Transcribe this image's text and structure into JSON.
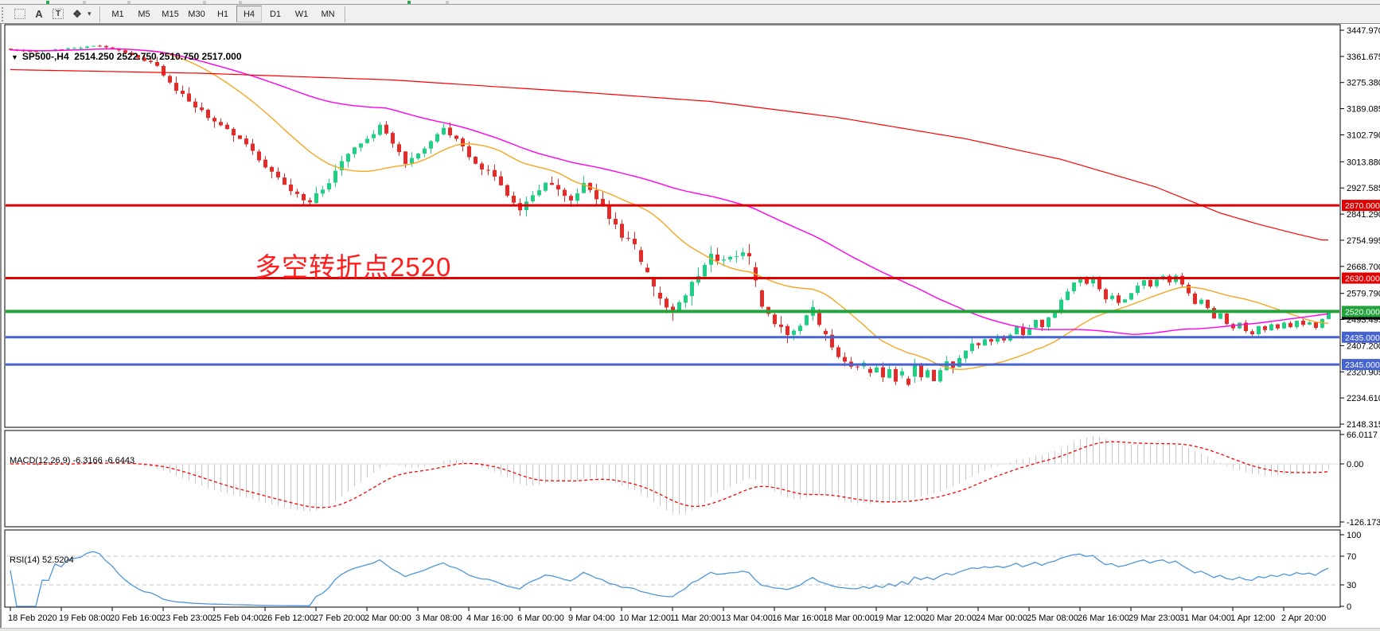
{
  "toolbar": {
    "tools": [
      {
        "id": "indicator-window-tool",
        "glyph": "F"
      },
      {
        "id": "text-label-tool",
        "glyph": "A"
      },
      {
        "id": "text-box-tool",
        "glyph": "T"
      },
      {
        "id": "shapes-tool",
        "glyph": "❖"
      },
      {
        "id": "shapes-dropdown",
        "glyph": "▾"
      }
    ],
    "timeframes": [
      "M1",
      "M5",
      "M15",
      "M30",
      "H1",
      "H4",
      "D1",
      "W1",
      "MN"
    ],
    "active_timeframe": "H4"
  },
  "chart": {
    "title_arrow": "▼",
    "symbol_period": "SP500-,H4",
    "ohlc": "2514.250 2522.750 2510.750 2517.000",
    "annotation": {
      "text": "多空转折点2520",
      "color": "#ff1e1e"
    }
  },
  "indicator_labels": {
    "macd": "MACD(12,26,9) -6.3166 -6.6443",
    "rsi": "RSI(14) 52.5204"
  },
  "axes": {
    "price_labels": [
      3447.97,
      3361.675,
      3275.38,
      3189.085,
      3102.79,
      3013.88,
      2927.585,
      2841.29,
      2754.995,
      2668.7,
      2579.79,
      2493.495,
      2407.2,
      2320.905,
      2234.61,
      2148.315
    ],
    "macd_labels": [
      {
        "v": 66.0117,
        "t": "66.0117"
      },
      {
        "v": 0,
        "t": "0.00"
      },
      {
        "v": -126.173,
        "t": "-126.173"
      }
    ],
    "rsi_labels": [
      {
        "v": 100,
        "t": "100"
      },
      {
        "v": 70,
        "t": "70"
      },
      {
        "v": 30,
        "t": "30"
      },
      {
        "v": 0,
        "t": "0"
      }
    ],
    "date_labels": [
      "18 Feb 2020",
      "19 Feb 08:00",
      "20 Feb 16:00",
      "23 Feb 23:00",
      "25 Feb 04:00",
      "26 Feb 12:00",
      "27 Feb 20:00",
      "2 Mar 00:00",
      "3 Mar 08:00",
      "4 Mar 16:00",
      "6 Mar 00:00",
      "9 Mar 04:00",
      "10 Mar 12:00",
      "11 Mar 20:00",
      "13 Mar 04:00",
      "16 Mar 16:00",
      "18 Mar 00:00",
      "19 Mar 12:00",
      "20 Mar 20:00",
      "24 Mar 00:00",
      "25 Mar 08:00",
      "26 Mar 16:00",
      "29 Mar 23:00",
      "31 Mar 04:00",
      "1 Apr 12:00",
      "2 Apr 20:00"
    ]
  },
  "hlines": [
    {
      "price": 2870,
      "label": "2870.000",
      "color": "#e00000",
      "width": 3
    },
    {
      "price": 2630,
      "label": "2630.000",
      "color": "#e00000",
      "width": 3
    },
    {
      "price": 2520,
      "label": "2520.000",
      "color": "#22a33c",
      "width": 4
    },
    {
      "price": 2435,
      "label": "2435.000",
      "color": "#4663d4",
      "width": 3
    },
    {
      "price": 2345,
      "label": "2345.000",
      "color": "#4663d4",
      "width": 3
    }
  ],
  "current_price": {
    "value": 2517.0,
    "label": "2517.000",
    "badge_color": "#000000"
  },
  "colors": {
    "up_candle": "#1fcf84",
    "down_candle": "#e32b28",
    "ma_fast": "#f5a623",
    "ma_mid": "#ff00ee",
    "ma_slow": "#ff0000",
    "macd_hist": "#c8c8c8",
    "macd_signal": "#ff0000",
    "rsi_line": "#4e96dc",
    "level_dash": "#c4c4c4",
    "axis_text": "#000000"
  },
  "chart_data": {
    "type": "candlestick",
    "symbol": "SP500-",
    "timeframe": "H4",
    "bars": 208,
    "label_every_n_bars": 8,
    "price_axis_top": 3447.97,
    "price_axis_bottom": 2148.315,
    "close_path": [
      [
        0,
        3383
      ],
      [
        4,
        3378
      ],
      [
        8,
        3386
      ],
      [
        12,
        3393
      ],
      [
        14,
        3397
      ],
      [
        16,
        3387
      ],
      [
        18,
        3375
      ],
      [
        20,
        3357
      ],
      [
        22,
        3338
      ],
      [
        23,
        3330
      ],
      [
        24,
        3305
      ],
      [
        26,
        3252
      ],
      [
        28,
        3214
      ],
      [
        30,
        3180
      ],
      [
        32,
        3152
      ],
      [
        34,
        3126
      ],
      [
        36,
        3088
      ],
      [
        38,
        3044
      ],
      [
        40,
        2995
      ],
      [
        42,
        2954
      ],
      [
        44,
        2918
      ],
      [
        46,
        2888
      ],
      [
        47,
        2872
      ],
      [
        48,
        2908
      ],
      [
        50,
        2952
      ],
      [
        52,
        3012
      ],
      [
        54,
        3066
      ],
      [
        56,
        3092
      ],
      [
        58,
        3130
      ],
      [
        60,
        3076
      ],
      [
        62,
        3012
      ],
      [
        64,
        3036
      ],
      [
        66,
        3086
      ],
      [
        68,
        3124
      ],
      [
        70,
        3088
      ],
      [
        72,
        3034
      ],
      [
        74,
        2994
      ],
      [
        76,
        2964
      ],
      [
        78,
        2898
      ],
      [
        80,
        2862
      ],
      [
        82,
        2906
      ],
      [
        84,
        2950
      ],
      [
        86,
        2918
      ],
      [
        88,
        2884
      ],
      [
        90,
        2940
      ],
      [
        92,
        2898
      ],
      [
        94,
        2828
      ],
      [
        96,
        2768
      ],
      [
        98,
        2734
      ],
      [
        100,
        2648
      ],
      [
        102,
        2558
      ],
      [
        104,
        2520
      ],
      [
        106,
        2582
      ],
      [
        108,
        2642
      ],
      [
        110,
        2700
      ],
      [
        112,
        2694
      ],
      [
        114,
        2712
      ],
      [
        116,
        2698
      ],
      [
        117,
        2618
      ],
      [
        118,
        2544
      ],
      [
        120,
        2478
      ],
      [
        122,
        2438
      ],
      [
        124,
        2470
      ],
      [
        126,
        2528
      ],
      [
        128,
        2440
      ],
      [
        130,
        2372
      ],
      [
        132,
        2330
      ],
      [
        134,
        2356
      ],
      [
        135,
        2310
      ],
      [
        136,
        2330
      ],
      [
        137,
        2296
      ],
      [
        138,
        2322
      ],
      [
        139,
        2284
      ],
      [
        140,
        2330
      ],
      [
        141,
        2276
      ],
      [
        142,
        2336
      ],
      [
        143,
        2300
      ],
      [
        144,
        2330
      ],
      [
        145,
        2292
      ],
      [
        146,
        2320
      ],
      [
        147,
        2350
      ],
      [
        148,
        2330
      ],
      [
        149,
        2368
      ],
      [
        150,
        2396
      ],
      [
        151,
        2420
      ],
      [
        152,
        2408
      ],
      [
        153,
        2430
      ],
      [
        154,
        2418
      ],
      [
        155,
        2442
      ],
      [
        156,
        2430
      ],
      [
        157,
        2446
      ],
      [
        158,
        2470
      ],
      [
        159,
        2440
      ],
      [
        160,
        2462
      ],
      [
        161,
        2488
      ],
      [
        162,
        2470
      ],
      [
        163,
        2496
      ],
      [
        164,
        2520
      ],
      [
        165,
        2556
      ],
      [
        166,
        2590
      ],
      [
        167,
        2616
      ],
      [
        168,
        2630
      ],
      [
        169,
        2612
      ],
      [
        170,
        2626
      ],
      [
        171,
        2596
      ],
      [
        172,
        2560
      ],
      [
        173,
        2576
      ],
      [
        174,
        2548
      ],
      [
        175,
        2556
      ],
      [
        176,
        2580
      ],
      [
        177,
        2604
      ],
      [
        178,
        2622
      ],
      [
        179,
        2600
      ],
      [
        180,
        2626
      ],
      [
        181,
        2640
      ],
      [
        182,
        2618
      ],
      [
        183,
        2636
      ],
      [
        184,
        2610
      ],
      [
        185,
        2576
      ],
      [
        186,
        2544
      ],
      [
        187,
        2560
      ],
      [
        188,
        2530
      ],
      [
        189,
        2496
      ],
      [
        190,
        2510
      ],
      [
        191,
        2478
      ],
      [
        192,
        2462
      ],
      [
        193,
        2480
      ],
      [
        194,
        2458
      ],
      [
        195,
        2446
      ],
      [
        196,
        2470
      ],
      [
        197,
        2456
      ],
      [
        198,
        2478
      ],
      [
        199,
        2462
      ],
      [
        200,
        2482
      ],
      [
        201,
        2470
      ],
      [
        202,
        2492
      ],
      [
        203,
        2474
      ],
      [
        204,
        2486
      ],
      [
        205,
        2468
      ],
      [
        206,
        2496
      ],
      [
        207,
        2517
      ]
    ],
    "volatility_path": [
      [
        0,
        9
      ],
      [
        14,
        10
      ],
      [
        20,
        16
      ],
      [
        24,
        42
      ],
      [
        32,
        46
      ],
      [
        40,
        46
      ],
      [
        48,
        50
      ],
      [
        56,
        40
      ],
      [
        64,
        38
      ],
      [
        72,
        36
      ],
      [
        78,
        48
      ],
      [
        88,
        44
      ],
      [
        96,
        54
      ],
      [
        104,
        72
      ],
      [
        112,
        58
      ],
      [
        117,
        62
      ],
      [
        120,
        64
      ],
      [
        128,
        48
      ],
      [
        136,
        46
      ],
      [
        144,
        44
      ],
      [
        152,
        34
      ],
      [
        160,
        28
      ],
      [
        168,
        26
      ],
      [
        176,
        24
      ],
      [
        184,
        24
      ],
      [
        192,
        20
      ],
      [
        200,
        15
      ],
      [
        207,
        11
      ]
    ],
    "ma_fast_period": 20,
    "ma_mid_period": 60,
    "ma_slow_path": [
      [
        0,
        3318
      ],
      [
        30,
        3306
      ],
      [
        60,
        3284
      ],
      [
        90,
        3243
      ],
      [
        110,
        3213
      ],
      [
        130,
        3160
      ],
      [
        150,
        3090
      ],
      [
        165,
        3022
      ],
      [
        180,
        2930
      ],
      [
        190,
        2845
      ],
      [
        196,
        2808
      ],
      [
        202,
        2776
      ],
      [
        206,
        2756
      ]
    ],
    "macd": {
      "fast": 12,
      "slow": 26,
      "signal": 9,
      "last": -6.3166,
      "last_signal": -6.6443,
      "axis_max": 66.0117,
      "axis_min": -126.173
    },
    "rsi": {
      "period": 14,
      "last": 52.5204,
      "levels": [
        70,
        30
      ]
    }
  }
}
